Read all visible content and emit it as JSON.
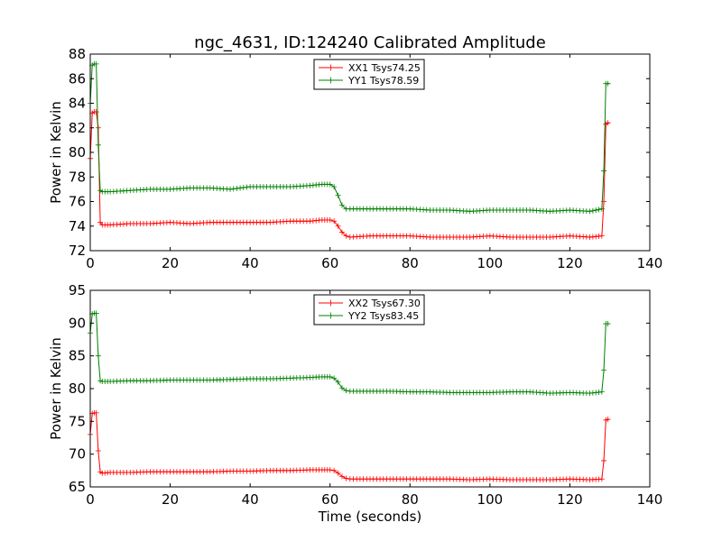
{
  "title": "ngc_4631, ID:124240 Calibrated Amplitude",
  "xlabel": "Time (seconds)",
  "colors": {
    "xx": "#ff0000",
    "yy": "#008000"
  },
  "chart_data": [
    {
      "type": "line",
      "ylabel": "Power in Kelvin",
      "xlim": [
        0,
        140
      ],
      "ylim": [
        72,
        88
      ],
      "xticks": [
        0,
        20,
        40,
        60,
        80,
        100,
        120,
        140
      ],
      "yticks": [
        72,
        74,
        76,
        78,
        80,
        82,
        84,
        86,
        88
      ],
      "grid": false,
      "legend": "top-center",
      "series": [
        {
          "name": "XX1 Tsys74.25",
          "color": "#ff0000",
          "x": [
            0,
            0.5,
            1,
            1.5,
            2,
            2.5,
            3,
            5,
            10,
            15,
            20,
            25,
            30,
            35,
            40,
            45,
            50,
            55,
            58,
            60,
            61,
            62,
            63,
            64,
            65,
            70,
            75,
            80,
            85,
            90,
            95,
            100,
            105,
            110,
            115,
            120,
            125,
            128,
            128.5,
            129,
            129.5,
            130
          ],
          "y": [
            79.5,
            83.2,
            83.3,
            83.3,
            82.0,
            74.3,
            74.1,
            74.1,
            74.2,
            74.2,
            74.3,
            74.2,
            74.3,
            74.3,
            74.3,
            74.3,
            74.4,
            74.4,
            74.5,
            74.5,
            74.4,
            74.0,
            73.5,
            73.2,
            73.1,
            73.2,
            73.2,
            73.2,
            73.1,
            73.1,
            73.1,
            73.2,
            73.1,
            73.1,
            73.1,
            73.2,
            73.1,
            73.2,
            76.0,
            82.3,
            82.4,
            82.4
          ]
        },
        {
          "name": "YY1 Tsys78.59",
          "color": "#008000",
          "x": [
            0,
            0.5,
            1,
            1.5,
            2,
            2.5,
            3,
            5,
            10,
            15,
            20,
            25,
            30,
            35,
            40,
            45,
            50,
            55,
            58,
            60,
            61,
            62,
            63,
            64,
            65,
            70,
            75,
            80,
            85,
            90,
            95,
            100,
            105,
            110,
            115,
            120,
            125,
            128,
            128.5,
            129,
            129.5,
            130
          ],
          "y": [
            84.0,
            87.1,
            87.2,
            87.2,
            80.6,
            76.9,
            76.8,
            76.8,
            76.9,
            77.0,
            77.0,
            77.1,
            77.1,
            77.0,
            77.2,
            77.2,
            77.2,
            77.3,
            77.4,
            77.4,
            77.2,
            76.5,
            75.7,
            75.4,
            75.4,
            75.4,
            75.4,
            75.4,
            75.3,
            75.3,
            75.2,
            75.3,
            75.3,
            75.3,
            75.2,
            75.3,
            75.2,
            75.4,
            78.5,
            85.6,
            85.6,
            85.6
          ]
        }
      ]
    },
    {
      "type": "line",
      "ylabel": "Power in Kelvin",
      "xlim": [
        0,
        140
      ],
      "ylim": [
        65,
        95
      ],
      "xticks": [
        0,
        20,
        40,
        60,
        80,
        100,
        120,
        140
      ],
      "yticks": [
        65,
        70,
        75,
        80,
        85,
        90,
        95
      ],
      "grid": false,
      "legend": "top-center",
      "series": [
        {
          "name": "XX2 Tsys67.30",
          "color": "#ff0000",
          "x": [
            0,
            0.5,
            1,
            1.5,
            2,
            2.5,
            3,
            5,
            10,
            15,
            20,
            25,
            30,
            35,
            40,
            45,
            50,
            55,
            58,
            60,
            61,
            62,
            63,
            64,
            65,
            70,
            75,
            80,
            85,
            90,
            95,
            100,
            105,
            110,
            115,
            120,
            125,
            128,
            128.5,
            129,
            129.5,
            130
          ],
          "y": [
            73.0,
            76.2,
            76.3,
            76.3,
            70.5,
            67.3,
            67.1,
            67.2,
            67.2,
            67.3,
            67.3,
            67.3,
            67.3,
            67.4,
            67.4,
            67.5,
            67.5,
            67.6,
            67.6,
            67.6,
            67.5,
            67.1,
            66.6,
            66.3,
            66.2,
            66.2,
            66.2,
            66.2,
            66.2,
            66.2,
            66.1,
            66.2,
            66.1,
            66.1,
            66.1,
            66.2,
            66.1,
            66.2,
            69.0,
            75.2,
            75.3,
            75.3
          ]
        },
        {
          "name": "YY2 Tsys83.45",
          "color": "#008000",
          "x": [
            0,
            0.5,
            1,
            1.5,
            2,
            2.5,
            3,
            5,
            10,
            15,
            20,
            25,
            30,
            35,
            40,
            45,
            50,
            55,
            58,
            60,
            61,
            62,
            63,
            64,
            65,
            70,
            75,
            80,
            85,
            90,
            95,
            100,
            105,
            110,
            115,
            120,
            125,
            128,
            128.5,
            129,
            129.5,
            130
          ],
          "y": [
            88.5,
            91.4,
            91.5,
            91.5,
            85.0,
            81.2,
            81.1,
            81.1,
            81.2,
            81.2,
            81.3,
            81.3,
            81.3,
            81.4,
            81.5,
            81.5,
            81.6,
            81.7,
            81.8,
            81.8,
            81.6,
            81.0,
            80.1,
            79.7,
            79.6,
            79.6,
            79.6,
            79.5,
            79.5,
            79.4,
            79.4,
            79.4,
            79.5,
            79.5,
            79.3,
            79.4,
            79.3,
            79.5,
            82.8,
            89.9,
            89.9,
            89.9
          ]
        }
      ]
    }
  ]
}
